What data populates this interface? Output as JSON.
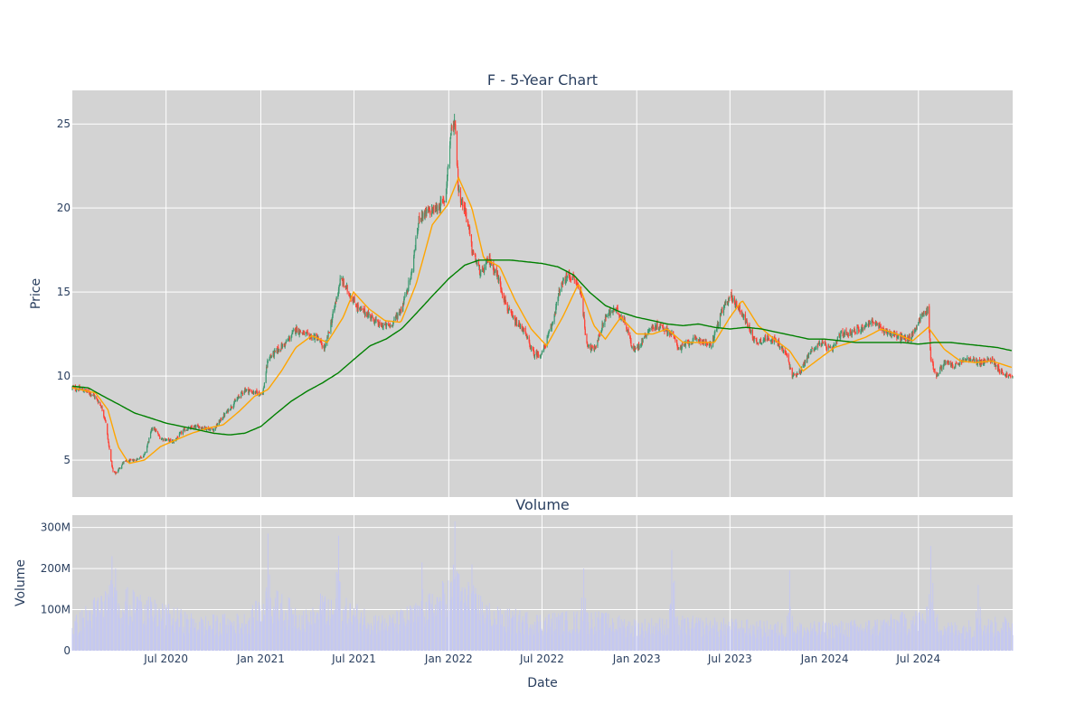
{
  "chart_data": [
    {
      "type": "candlestick",
      "title": "F - 5-Year Chart",
      "ylabel": "Price",
      "xlabel": "",
      "x_range": [
        "2020-01-01",
        "2024-12-31"
      ],
      "ylim": [
        2.8,
        27.0
      ],
      "y_ticks": [
        5,
        10,
        15,
        20,
        25
      ],
      "grid": true,
      "background": "#d3d3d3",
      "colors": {
        "up": "#3d9970",
        "down": "#ff4136",
        "ma_short": "#ffa500",
        "ma_long": "#008000"
      },
      "price_keypoints": [
        [
          "2020-01-01",
          9.3
        ],
        [
          "2020-01-20",
          9.2
        ],
        [
          "2020-02-10",
          8.9
        ],
        [
          "2020-02-25",
          8.3
        ],
        [
          "2020-03-05",
          7.4
        ],
        [
          "2020-03-12",
          5.8
        ],
        [
          "2020-03-20",
          4.3
        ],
        [
          "2020-03-25",
          4.2
        ],
        [
          "2020-04-10",
          4.9
        ],
        [
          "2020-05-01",
          5.0
        ],
        [
          "2020-05-20",
          5.3
        ],
        [
          "2020-06-05",
          7.0
        ],
        [
          "2020-06-20",
          6.3
        ],
        [
          "2020-07-15",
          6.1
        ],
        [
          "2020-08-05",
          6.8
        ],
        [
          "2020-09-01",
          7.0
        ],
        [
          "2020-10-01",
          6.8
        ],
        [
          "2020-10-20",
          7.6
        ],
        [
          "2020-11-10",
          8.4
        ],
        [
          "2020-12-01",
          9.2
        ],
        [
          "2020-12-20",
          9.0
        ],
        [
          "2021-01-05",
          9.0
        ],
        [
          "2021-01-15",
          11.0
        ],
        [
          "2021-02-01",
          11.5
        ],
        [
          "2021-02-20",
          12.0
        ],
        [
          "2021-03-10",
          12.8
        ],
        [
          "2021-04-01",
          12.4
        ],
        [
          "2021-04-20",
          12.3
        ],
        [
          "2021-05-05",
          11.6
        ],
        [
          "2021-05-20",
          13.5
        ],
        [
          "2021-06-05",
          15.8
        ],
        [
          "2021-06-20",
          15.0
        ],
        [
          "2021-07-10",
          14.0
        ],
        [
          "2021-08-01",
          13.6
        ],
        [
          "2021-08-20",
          13.0
        ],
        [
          "2021-09-10",
          13.0
        ],
        [
          "2021-10-01",
          14.0
        ],
        [
          "2021-10-20",
          16.0
        ],
        [
          "2021-11-05",
          19.5
        ],
        [
          "2021-11-25",
          19.8
        ],
        [
          "2021-12-10",
          20.0
        ],
        [
          "2021-12-25",
          20.5
        ],
        [
          "2022-01-05",
          24.5
        ],
        [
          "2022-01-13",
          25.2
        ],
        [
          "2022-01-20",
          21.0
        ],
        [
          "2022-02-05",
          19.5
        ],
        [
          "2022-02-15",
          17.5
        ],
        [
          "2022-03-05",
          16.0
        ],
        [
          "2022-03-20",
          17.0
        ],
        [
          "2022-04-05",
          16.0
        ],
        [
          "2022-04-25",
          14.0
        ],
        [
          "2022-05-10",
          13.2
        ],
        [
          "2022-05-25",
          12.8
        ],
        [
          "2022-06-15",
          11.3
        ],
        [
          "2022-07-01",
          11.3
        ],
        [
          "2022-07-20",
          13.0
        ],
        [
          "2022-08-05",
          15.2
        ],
        [
          "2022-08-20",
          16.0
        ],
        [
          "2022-09-01",
          15.8
        ],
        [
          "2022-09-15",
          15.0
        ],
        [
          "2022-09-25",
          12.0
        ],
        [
          "2022-10-10",
          11.5
        ],
        [
          "2022-11-01",
          13.5
        ],
        [
          "2022-11-20",
          14.0
        ],
        [
          "2022-12-10",
          13.2
        ],
        [
          "2022-12-25",
          11.5
        ],
        [
          "2023-01-05",
          11.8
        ],
        [
          "2023-01-25",
          12.8
        ],
        [
          "2023-02-15",
          13.0
        ],
        [
          "2023-03-10",
          12.5
        ],
        [
          "2023-03-25",
          11.6
        ],
        [
          "2023-04-10",
          12.0
        ],
        [
          "2023-05-01",
          12.2
        ],
        [
          "2023-05-25",
          11.8
        ],
        [
          "2023-06-15",
          13.8
        ],
        [
          "2023-07-01",
          14.8
        ],
        [
          "2023-07-20",
          14.0
        ],
        [
          "2023-08-05",
          13.0
        ],
        [
          "2023-08-20",
          12.0
        ],
        [
          "2023-09-15",
          12.3
        ],
        [
          "2023-10-01",
          12.0
        ],
        [
          "2023-10-20",
          11.2
        ],
        [
          "2023-10-30",
          10.0
        ],
        [
          "2023-11-15",
          10.3
        ],
        [
          "2023-12-05",
          11.5
        ],
        [
          "2023-12-25",
          12.0
        ],
        [
          "2024-01-15",
          11.5
        ],
        [
          "2024-02-01",
          12.5
        ],
        [
          "2024-02-20",
          12.6
        ],
        [
          "2024-03-10",
          12.8
        ],
        [
          "2024-04-01",
          13.3
        ],
        [
          "2024-04-20",
          12.8
        ],
        [
          "2024-05-05",
          12.6
        ],
        [
          "2024-05-25",
          12.3
        ],
        [
          "2024-06-15",
          12.2
        ],
        [
          "2024-07-05",
          13.5
        ],
        [
          "2024-07-20",
          14.0
        ],
        [
          "2024-07-25",
          11.0
        ],
        [
          "2024-08-05",
          10.0
        ],
        [
          "2024-08-20",
          10.8
        ],
        [
          "2024-09-10",
          10.6
        ],
        [
          "2024-10-01",
          11.0
        ],
        [
          "2024-11-01",
          10.8
        ],
        [
          "2024-11-20",
          11.0
        ],
        [
          "2024-12-10",
          10.2
        ],
        [
          "2024-12-31",
          9.9
        ]
      ],
      "moving_averages": [
        {
          "color": "#ffa500",
          "points": [
            [
              "2020-01-01",
              9.3
            ],
            [
              "2020-02-15",
              9.0
            ],
            [
              "2020-03-10",
              8.0
            ],
            [
              "2020-03-30",
              5.8
            ],
            [
              "2020-04-20",
              4.8
            ],
            [
              "2020-05-20",
              5.0
            ],
            [
              "2020-06-20",
              5.8
            ],
            [
              "2020-07-20",
              6.2
            ],
            [
              "2020-08-20",
              6.6
            ],
            [
              "2020-09-20",
              6.9
            ],
            [
              "2020-10-20",
              7.1
            ],
            [
              "2020-11-20",
              7.9
            ],
            [
              "2020-12-20",
              8.8
            ],
            [
              "2021-01-15",
              9.2
            ],
            [
              "2021-02-10",
              10.3
            ],
            [
              "2021-03-10",
              11.7
            ],
            [
              "2021-04-10",
              12.4
            ],
            [
              "2021-05-10",
              12.0
            ],
            [
              "2021-06-10",
              13.5
            ],
            [
              "2021-06-30",
              15.0
            ],
            [
              "2021-07-30",
              14.0
            ],
            [
              "2021-08-30",
              13.3
            ],
            [
              "2021-09-30",
              13.2
            ],
            [
              "2021-10-30",
              15.5
            ],
            [
              "2021-11-30",
              19.0
            ],
            [
              "2021-12-30",
              20.2
            ],
            [
              "2022-01-20",
              21.8
            ],
            [
              "2022-02-15",
              20.0
            ],
            [
              "2022-03-10",
              17.0
            ],
            [
              "2022-04-10",
              16.5
            ],
            [
              "2022-05-10",
              14.5
            ],
            [
              "2022-06-10",
              12.8
            ],
            [
              "2022-07-10",
              11.8
            ],
            [
              "2022-08-10",
              13.5
            ],
            [
              "2022-09-10",
              15.5
            ],
            [
              "2022-10-10",
              13.0
            ],
            [
              "2022-11-01",
              12.2
            ],
            [
              "2022-12-01",
              13.5
            ],
            [
              "2023-01-01",
              12.5
            ],
            [
              "2023-02-01",
              12.5
            ],
            [
              "2023-03-01",
              12.8
            ],
            [
              "2023-04-01",
              12.0
            ],
            [
              "2023-05-01",
              12.0
            ],
            [
              "2023-06-01",
              12.0
            ],
            [
              "2023-07-01",
              13.5
            ],
            [
              "2023-07-25",
              14.5
            ],
            [
              "2023-08-25",
              13.0
            ],
            [
              "2023-09-25",
              12.2
            ],
            [
              "2023-10-25",
              11.5
            ],
            [
              "2023-11-20",
              10.3
            ],
            [
              "2023-12-20",
              11.0
            ],
            [
              "2024-01-20",
              11.7
            ],
            [
              "2024-02-20",
              12.0
            ],
            [
              "2024-03-20",
              12.3
            ],
            [
              "2024-04-20",
              12.8
            ],
            [
              "2024-05-20",
              12.5
            ],
            [
              "2024-06-20",
              12.1
            ],
            [
              "2024-07-20",
              12.9
            ],
            [
              "2024-08-20",
              11.6
            ],
            [
              "2024-09-20",
              10.9
            ],
            [
              "2024-10-20",
              10.8
            ],
            [
              "2024-11-20",
              10.9
            ],
            [
              "2024-12-31",
              10.5
            ]
          ]
        },
        {
          "color": "#008000",
          "points": [
            [
              "2020-01-01",
              9.4
            ],
            [
              "2020-02-01",
              9.3
            ],
            [
              "2020-03-01",
              8.8
            ],
            [
              "2020-04-01",
              8.3
            ],
            [
              "2020-05-01",
              7.8
            ],
            [
              "2020-06-01",
              7.5
            ],
            [
              "2020-07-01",
              7.2
            ],
            [
              "2020-08-01",
              7.0
            ],
            [
              "2020-09-01",
              6.8
            ],
            [
              "2020-10-01",
              6.6
            ],
            [
              "2020-11-01",
              6.5
            ],
            [
              "2020-12-01",
              6.6
            ],
            [
              "2021-01-01",
              7.0
            ],
            [
              "2021-02-01",
              7.8
            ],
            [
              "2021-03-01",
              8.5
            ],
            [
              "2021-04-01",
              9.1
            ],
            [
              "2021-05-01",
              9.6
            ],
            [
              "2021-06-01",
              10.2
            ],
            [
              "2021-07-01",
              11.0
            ],
            [
              "2021-08-01",
              11.8
            ],
            [
              "2021-09-01",
              12.2
            ],
            [
              "2021-10-01",
              12.8
            ],
            [
              "2021-11-01",
              13.8
            ],
            [
              "2021-12-01",
              14.8
            ],
            [
              "2022-01-01",
              15.8
            ],
            [
              "2022-02-01",
              16.6
            ],
            [
              "2022-03-01",
              16.9
            ],
            [
              "2022-04-01",
              16.9
            ],
            [
              "2022-05-01",
              16.9
            ],
            [
              "2022-06-01",
              16.8
            ],
            [
              "2022-07-01",
              16.7
            ],
            [
              "2022-08-01",
              16.5
            ],
            [
              "2022-09-01",
              16.0
            ],
            [
              "2022-10-01",
              15.0
            ],
            [
              "2022-11-01",
              14.2
            ],
            [
              "2022-12-01",
              13.8
            ],
            [
              "2023-01-01",
              13.5
            ],
            [
              "2023-02-01",
              13.3
            ],
            [
              "2023-03-01",
              13.1
            ],
            [
              "2023-04-01",
              13.0
            ],
            [
              "2023-05-01",
              13.1
            ],
            [
              "2023-06-01",
              12.9
            ],
            [
              "2023-07-01",
              12.8
            ],
            [
              "2023-08-01",
              12.9
            ],
            [
              "2023-09-01",
              12.8
            ],
            [
              "2023-10-01",
              12.6
            ],
            [
              "2023-11-01",
              12.4
            ],
            [
              "2023-12-01",
              12.2
            ],
            [
              "2024-01-01",
              12.2
            ],
            [
              "2024-02-01",
              12.1
            ],
            [
              "2024-03-01",
              12.0
            ],
            [
              "2024-04-01",
              12.0
            ],
            [
              "2024-05-01",
              12.0
            ],
            [
              "2024-06-01",
              12.0
            ],
            [
              "2024-07-01",
              11.9
            ],
            [
              "2024-08-01",
              12.0
            ],
            [
              "2024-09-01",
              12.0
            ],
            [
              "2024-10-01",
              11.9
            ],
            [
              "2024-11-01",
              11.8
            ],
            [
              "2024-12-01",
              11.7
            ],
            [
              "2024-12-31",
              11.5
            ]
          ]
        }
      ]
    },
    {
      "type": "bar",
      "title": "Volume",
      "ylabel": "Volume",
      "xlabel": "Date",
      "x_range": [
        "2020-01-01",
        "2024-12-31"
      ],
      "ylim": [
        0,
        330000000
      ],
      "y_ticks": [
        0,
        100000000,
        200000000,
        300000000
      ],
      "y_tick_labels": [
        "0",
        "100M",
        "200M",
        "300M"
      ],
      "x_tick_dates": [
        "2020-07-01",
        "2021-01-01",
        "2021-07-01",
        "2022-01-01",
        "2022-07-01",
        "2023-01-01",
        "2023-07-01",
        "2024-01-01",
        "2024-07-01"
      ],
      "x_tick_labels": [
        "Jul 2020",
        "Jan 2021",
        "Jul 2021",
        "Jan 2022",
        "Jul 2022",
        "Jan 2023",
        "Jul 2023",
        "Jan 2024",
        "Jul 2024"
      ],
      "grid": true,
      "background": "#d3d3d3",
      "bar_color": "#c5c8f0",
      "volume_baseline": [
        [
          "2020-01-01",
          55000000
        ],
        [
          "2020-03-15",
          120000000
        ],
        [
          "2020-06-01",
          90000000
        ],
        [
          "2020-09-01",
          60000000
        ],
        [
          "2020-12-01",
          65000000
        ],
        [
          "2021-01-20",
          110000000
        ],
        [
          "2021-04-01",
          70000000
        ],
        [
          "2021-06-01",
          95000000
        ],
        [
          "2021-09-01",
          60000000
        ],
        [
          "2021-11-15",
          90000000
        ],
        [
          "2022-01-15",
          140000000
        ],
        [
          "2022-04-01",
          75000000
        ],
        [
          "2022-07-01",
          65000000
        ],
        [
          "2022-10-01",
          70000000
        ],
        [
          "2023-01-01",
          55000000
        ],
        [
          "2023-04-01",
          60000000
        ],
        [
          "2023-07-01",
          55000000
        ],
        [
          "2023-10-01",
          50000000
        ],
        [
          "2024-01-01",
          50000000
        ],
        [
          "2024-04-01",
          55000000
        ],
        [
          "2024-07-20",
          75000000
        ],
        [
          "2024-09-01",
          50000000
        ],
        [
          "2024-12-31",
          60000000
        ]
      ],
      "volume_spikes": [
        [
          "2020-03-18",
          230000000
        ],
        [
          "2020-03-25",
          200000000
        ],
        [
          "2020-05-10",
          210000000
        ],
        [
          "2021-01-15",
          285000000
        ],
        [
          "2021-05-01",
          210000000
        ],
        [
          "2021-06-01",
          280000000
        ],
        [
          "2021-11-10",
          215000000
        ],
        [
          "2022-01-13",
          315000000
        ],
        [
          "2022-02-15",
          210000000
        ],
        [
          "2022-09-20",
          200000000
        ],
        [
          "2023-03-10",
          245000000
        ],
        [
          "2023-10-25",
          195000000
        ],
        [
          "2024-07-25",
          255000000
        ],
        [
          "2024-10-25",
          160000000
        ]
      ]
    }
  ]
}
